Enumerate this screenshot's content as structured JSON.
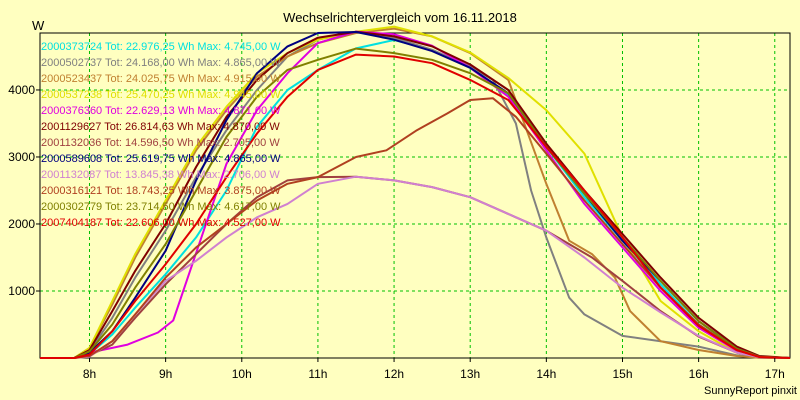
{
  "chart_data": {
    "type": "line",
    "title": "Wechselrichtervergleich vom 16.11.2018",
    "ylabel": "W",
    "footer": "SunnyReport pinxit",
    "xlim": [
      7.35,
      17.2
    ],
    "ylim": [
      0,
      4850
    ],
    "x_ticks": [
      {
        "value": 8,
        "label": "8h"
      },
      {
        "value": 9,
        "label": "9h"
      },
      {
        "value": 10,
        "label": "10h"
      },
      {
        "value": 11,
        "label": "11h"
      },
      {
        "value": 12,
        "label": "12h"
      },
      {
        "value": 13,
        "label": "13h"
      },
      {
        "value": 14,
        "label": "14h"
      },
      {
        "value": 15,
        "label": "15h"
      },
      {
        "value": 16,
        "label": "16h"
      },
      {
        "value": 17,
        "label": "17h"
      }
    ],
    "y_ticks": [
      {
        "value": 1000,
        "label": "1000"
      },
      {
        "value": 2000,
        "label": "2000"
      },
      {
        "value": 3000,
        "label": "3000"
      },
      {
        "value": 4000,
        "label": "4000"
      }
    ],
    "grid": true,
    "legend_position": "top-left",
    "series": [
      {
        "name": "2000373724 Tot: 22.976,25 Wh Max: 4.745,00 W",
        "color": "#00e0e0",
        "x": [
          7.35,
          7.8,
          8,
          8.3,
          8.6,
          9,
          9.4,
          9.8,
          10.2,
          10.6,
          11,
          11.5,
          12,
          12.5,
          13,
          13.5,
          14,
          14.5,
          15,
          15.5,
          16,
          16.5,
          16.8,
          17.2
        ],
        "y": [
          0,
          0,
          60,
          350,
          750,
          1250,
          1800,
          2500,
          3450,
          4000,
          4300,
          4620,
          4745,
          4600,
          4330,
          3920,
          3150,
          2400,
          1750,
          1100,
          500,
          120,
          20,
          0
        ]
      },
      {
        "name": "2000502737 Tot: 24.168,00 Wh Max: 4.865,00 W",
        "color": "#808080",
        "x": [
          7.35,
          7.8,
          8,
          8.3,
          8.6,
          9,
          9.4,
          9.8,
          10.2,
          10.6,
          11,
          11.5,
          12,
          12.5,
          13,
          13.3,
          13.6,
          13.8,
          14,
          14.3,
          14.5,
          15,
          15.5,
          16,
          16.5,
          16.8,
          17.2
        ],
        "y": [
          0,
          0,
          100,
          600,
          1200,
          1900,
          2700,
          3400,
          4000,
          4500,
          4750,
          4865,
          4780,
          4600,
          4350,
          4150,
          3500,
          2500,
          1800,
          900,
          650,
          330,
          250,
          170,
          40,
          5,
          0
        ]
      },
      {
        "name": "2000523437 Tot: 24.025,75 Wh Max: 4.915,00 W",
        "color": "#c08030",
        "x": [
          7.35,
          7.8,
          8,
          8.3,
          8.6,
          9,
          9.4,
          9.8,
          10.2,
          10.6,
          11,
          11.5,
          12,
          12.5,
          13,
          13.5,
          14,
          14.3,
          14.6,
          14.9,
          15.1,
          15.5,
          16,
          16.5,
          16.8,
          17.2
        ],
        "y": [
          0,
          0,
          150,
          800,
          1500,
          2300,
          3100,
          3700,
          4200,
          4500,
          4700,
          4850,
          4915,
          4800,
          4550,
          4150,
          2600,
          1750,
          1550,
          1200,
          700,
          250,
          120,
          30,
          5,
          0
        ]
      },
      {
        "name": "2000537238 Tot: 25.470,25 Wh Max: 4.945,00 W",
        "color": "#e0e000",
        "x": [
          7.35,
          7.8,
          8,
          8.3,
          8.6,
          9,
          9.4,
          9.8,
          10.2,
          10.6,
          11,
          11.5,
          12,
          12.5,
          13,
          13.5,
          14,
          14.5,
          15,
          15.5,
          16,
          16.5,
          16.8,
          17.2
        ],
        "y": [
          0,
          0,
          150,
          850,
          1550,
          2350,
          3150,
          3750,
          4250,
          4550,
          4750,
          4870,
          4945,
          4800,
          4560,
          4180,
          3700,
          3050,
          1800,
          850,
          400,
          80,
          10,
          0
        ]
      },
      {
        "name": "2000376360 Tot: 22.629,13 Wh Max: 4.871,00 W",
        "color": "#e000e0",
        "x": [
          7.35,
          7.8,
          8,
          8.3,
          8.5,
          8.9,
          9.1,
          9.5,
          9.8,
          10.2,
          10.6,
          11,
          11.5,
          12,
          12.5,
          13,
          13.5,
          14,
          14.5,
          15,
          15.5,
          16,
          16.5,
          16.8,
          17.2
        ],
        "y": [
          0,
          0,
          80,
          150,
          200,
          380,
          560,
          1900,
          2900,
          3700,
          4250,
          4700,
          4871,
          4830,
          4660,
          4330,
          3900,
          3100,
          2300,
          1650,
          1000,
          450,
          110,
          15,
          0
        ]
      },
      {
        "name": "2001129627 Tot: 26.814,63 Wh Max: 4.870,00 W",
        "color": "#800000",
        "x": [
          7.35,
          7.8,
          8,
          8.3,
          8.6,
          9,
          9.4,
          9.8,
          10.2,
          10.6,
          11,
          11.5,
          12,
          12.5,
          13,
          13.5,
          14,
          14.5,
          15,
          15.5,
          16,
          16.5,
          16.8,
          17.2
        ],
        "y": [
          0,
          0,
          120,
          700,
          1300,
          2000,
          2850,
          3600,
          4150,
          4550,
          4780,
          4870,
          4800,
          4650,
          4380,
          4000,
          3200,
          2500,
          1850,
          1200,
          600,
          170,
          30,
          0
        ]
      },
      {
        "name": "2001132036 Tot: 14.596,50 Wh Max: 2.705,00 W",
        "color": "#a04040",
        "x": [
          7.35,
          7.8,
          8,
          8.3,
          8.6,
          9,
          9.4,
          9.8,
          10.2,
          10.6,
          11,
          11.5,
          12,
          12.5,
          13,
          13.3,
          13.6,
          14,
          14.3,
          14.6,
          15,
          15.5,
          16,
          16.5,
          16.8,
          17.2
        ],
        "y": [
          0,
          0,
          40,
          200,
          600,
          1100,
          1550,
          2000,
          2400,
          2650,
          2700,
          2705,
          2650,
          2550,
          2400,
          2250,
          2100,
          1900,
          1700,
          1500,
          1150,
          700,
          320,
          80,
          10,
          0
        ]
      },
      {
        "name": "2000589608 Tot: 25.619,75 Wh Max: 4.865,00 W",
        "color": "#000080",
        "x": [
          7.35,
          7.8,
          8,
          8.3,
          8.6,
          9,
          9.4,
          9.8,
          10.2,
          10.6,
          11,
          11.5,
          12,
          12.5,
          13,
          13.5,
          14,
          14.5,
          15,
          15.5,
          16,
          16.5,
          16.8,
          17.2
        ],
        "y": [
          0,
          0,
          80,
          400,
          900,
          1600,
          2650,
          3550,
          4250,
          4650,
          4850,
          4865,
          4750,
          4580,
          4330,
          3950,
          3150,
          2450,
          1750,
          1150,
          550,
          140,
          20,
          0
        ]
      },
      {
        "name": "2001132087 Tot: 13.845,38 Wh Max: 2.706,00 W",
        "color": "#d080d0",
        "x": [
          7.35,
          7.8,
          8,
          8.3,
          8.6,
          9,
          9.4,
          9.8,
          10.2,
          10.6,
          11,
          11.5,
          12,
          12.5,
          13,
          13.5,
          14,
          14.5,
          15,
          15.5,
          16,
          16.5,
          16.8,
          17.2
        ],
        "y": [
          0,
          0,
          20,
          250,
          650,
          1150,
          1450,
          1800,
          2100,
          2300,
          2600,
          2706,
          2650,
          2550,
          2400,
          2150,
          1900,
          1500,
          1050,
          680,
          330,
          80,
          10,
          0
        ]
      },
      {
        "name": "2000316121 Tot: 18.743,25 Wh Max: 3.875,00 W",
        "color": "#b04020",
        "x": [
          7.35,
          7.8,
          8,
          8.3,
          8.6,
          9,
          9.4,
          9.8,
          10.2,
          10.6,
          11,
          11.5,
          11.9,
          12.3,
          12.7,
          13,
          13.3,
          13.6,
          14,
          14.5,
          15,
          15.5,
          16,
          16.5,
          16.8,
          17.2
        ],
        "y": [
          0,
          0,
          30,
          250,
          650,
          1200,
          1650,
          2000,
          2350,
          2600,
          2700,
          3000,
          3100,
          3400,
          3650,
          3850,
          3875,
          3600,
          3050,
          2350,
          1700,
          1050,
          500,
          120,
          15,
          0
        ]
      },
      {
        "name": "2000302779 Tot: 23.714,50 Wh Max: 4.617,00 W",
        "color": "#808000",
        "x": [
          7.35,
          7.8,
          8,
          8.3,
          8.6,
          9,
          9.4,
          9.8,
          10.2,
          10.6,
          11,
          11.5,
          12,
          12.5,
          13,
          13.5,
          14,
          14.5,
          15,
          15.5,
          16,
          16.5,
          16.8,
          17.2
        ],
        "y": [
          0,
          0,
          100,
          500,
          1050,
          1700,
          2500,
          3300,
          3900,
          4300,
          4450,
          4617,
          4550,
          4450,
          4250,
          3950,
          3150,
          2450,
          1800,
          1150,
          550,
          140,
          20,
          0
        ]
      },
      {
        "name": "2007404187 Tot: 22.606,00 Wh Max: 4.527,00 W",
        "color": "#e00000",
        "x": [
          7.35,
          7.8,
          8,
          8.3,
          8.6,
          9,
          9.4,
          9.8,
          10.2,
          10.6,
          11,
          11.5,
          12,
          12.5,
          13,
          13.5,
          14,
          14.5,
          15,
          15.5,
          16,
          16.5,
          16.8,
          17.2
        ],
        "y": [
          0,
          0,
          50,
          400,
          850,
          1400,
          2000,
          2700,
          3350,
          3900,
          4300,
          4527,
          4500,
          4400,
          4150,
          3850,
          3150,
          2500,
          1800,
          1050,
          480,
          120,
          15,
          0
        ]
      }
    ]
  }
}
